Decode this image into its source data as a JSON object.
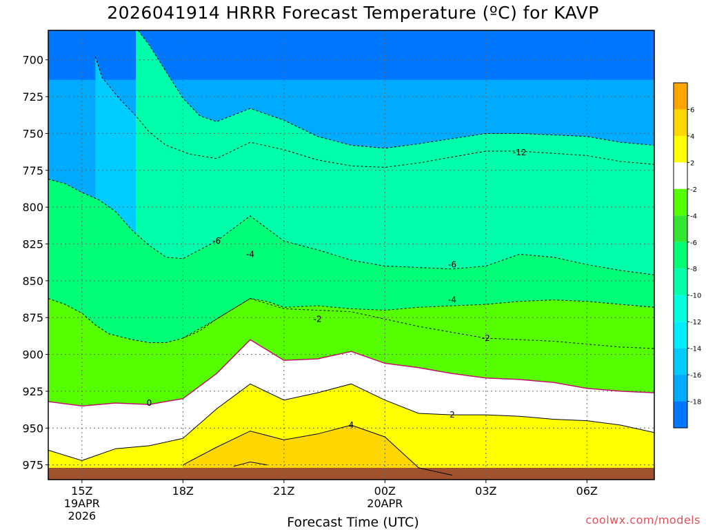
{
  "title": "2026041914 HRRR Forecast Temperature (ºC) for KAVP",
  "x_axis_title": "Forecast Time (UTC)",
  "credit": "coolwx.com/models",
  "chart_data": {
    "type": "heatmap",
    "title": "2026041914 HRRR Forecast Temperature (ºC) for KAVP",
    "xlabel": "Forecast Time (UTC)",
    "ylabel": "",
    "x_tick_labels": [
      "15Z",
      "18Z",
      "21Z",
      "00Z",
      "03Z",
      "06Z"
    ],
    "x_subtick_labels": [
      {
        "at": "15Z",
        "lines": [
          "19APR",
          "2026"
        ]
      },
      {
        "at": "00Z",
        "lines": [
          "20APR"
        ]
      }
    ],
    "x_range_hours": [
      14,
      32
    ],
    "y_tick_labels": [
      "700",
      "725",
      "750",
      "775",
      "800",
      "825",
      "850",
      "875",
      "900",
      "925",
      "950",
      "975"
    ],
    "y_range_hpa": [
      680,
      985
    ],
    "y_reversed": true,
    "grid": true,
    "colorbar": {
      "levels": [
        8,
        6,
        4,
        2,
        -2,
        -4,
        -6,
        -8,
        -10,
        -12,
        -14,
        -16,
        -18,
        -20
      ],
      "tick_labels": [
        "6",
        "4",
        "2",
        "-2",
        "-4",
        "-6",
        "-8",
        "-10",
        "-12",
        "-14",
        "-16",
        "-18"
      ],
      "colors": [
        "#ffa500",
        "#ffd700",
        "#ffff00",
        "#ffffff",
        "#55ff00",
        "#33e633",
        "#00ff77",
        "#00ffaa",
        "#00ffdd",
        "#00eeff",
        "#00ccff",
        "#00aaff",
        "#0077ff"
      ]
    },
    "contours": [
      {
        "label": "-12",
        "color": "#000000",
        "dash": true,
        "points": [
          [
            15.4,
            698
          ],
          [
            15.6,
            712
          ],
          [
            16.1,
            726
          ],
          [
            16.6,
            738
          ],
          [
            17.0,
            749
          ],
          [
            17.5,
            758
          ],
          [
            18.2,
            764
          ],
          [
            19.0,
            767
          ],
          [
            20.0,
            756
          ],
          [
            21.0,
            761
          ],
          [
            22.0,
            768
          ],
          [
            23.0,
            772
          ],
          [
            24.0,
            773
          ],
          [
            25.0,
            770
          ],
          [
            27.0,
            762
          ],
          [
            28.0,
            762
          ],
          [
            30.0,
            765
          ],
          [
            31.0,
            769
          ],
          [
            32.0,
            771
          ]
        ]
      },
      {
        "label": "-10",
        "color": "#000000",
        "dash": true,
        "points": [
          [
            16.6,
            678
          ],
          [
            17.0,
            690
          ],
          [
            17.5,
            708
          ],
          [
            18.0,
            726
          ],
          [
            18.5,
            738
          ],
          [
            19.0,
            742
          ],
          [
            20.0,
            733
          ],
          [
            21.0,
            741
          ],
          [
            22.0,
            752
          ],
          [
            23.0,
            758
          ],
          [
            24.0,
            760
          ],
          [
            25.0,
            757
          ],
          [
            27.0,
            750
          ],
          [
            28.0,
            750
          ],
          [
            30.0,
            752
          ],
          [
            31.0,
            756
          ],
          [
            32.0,
            758
          ]
        ]
      },
      {
        "label": "-6",
        "color": "#000000",
        "dash": true,
        "points": [
          [
            14.0,
            781
          ],
          [
            14.5,
            784
          ],
          [
            15.0,
            790
          ],
          [
            15.5,
            795
          ],
          [
            16.0,
            803
          ],
          [
            16.5,
            816
          ],
          [
            17.0,
            826
          ],
          [
            17.5,
            834
          ],
          [
            18.0,
            835
          ],
          [
            19.0,
            823
          ],
          [
            20.0,
            806
          ],
          [
            21.0,
            823
          ],
          [
            22.0,
            829
          ],
          [
            23.0,
            836
          ],
          [
            24.0,
            840
          ],
          [
            25.0,
            841
          ],
          [
            26.0,
            842
          ],
          [
            27.0,
            840
          ],
          [
            28.0,
            832
          ],
          [
            29.0,
            834
          ],
          [
            30.0,
            839
          ],
          [
            31.0,
            843
          ],
          [
            32.0,
            846
          ]
        ]
      },
      {
        "label": "-4",
        "color": "#000000",
        "dash": true,
        "points": [
          [
            14.0,
            862
          ],
          [
            14.5,
            866
          ],
          [
            15.0,
            872
          ],
          [
            15.4,
            880
          ],
          [
            15.8,
            886
          ],
          [
            16.5,
            890
          ],
          [
            17.0,
            892
          ],
          [
            17.5,
            892
          ],
          [
            18.0,
            889
          ],
          [
            18.5,
            884
          ],
          [
            19.0,
            876
          ],
          [
            20.0,
            862
          ],
          [
            20.5,
            864
          ],
          [
            21.0,
            868
          ],
          [
            22.0,
            867
          ],
          [
            23.0,
            869
          ],
          [
            24.0,
            870
          ],
          [
            25.0,
            868
          ],
          [
            26.0,
            867
          ],
          [
            27.0,
            866
          ],
          [
            28.0,
            864
          ],
          [
            29.0,
            863
          ],
          [
            30.0,
            864
          ],
          [
            31.0,
            866
          ],
          [
            32.0,
            868
          ]
        ]
      },
      {
        "label": "-2",
        "color": "#000000",
        "dash": true,
        "points": [
          [
            18.0,
            889
          ],
          [
            19.0,
            876
          ],
          [
            20.0,
            862
          ],
          [
            21.0,
            869
          ],
          [
            22.0,
            870
          ],
          [
            23.0,
            871
          ],
          [
            24.0,
            876
          ],
          [
            25.0,
            881
          ],
          [
            26.0,
            885
          ],
          [
            27.0,
            889
          ],
          [
            28.0,
            890
          ],
          [
            29.0,
            891
          ],
          [
            30.0,
            893
          ],
          [
            31.0,
            895
          ],
          [
            32.0,
            896
          ]
        ]
      },
      {
        "label": "0",
        "color": "#c0106a",
        "dash": false,
        "points": [
          [
            14.0,
            932
          ],
          [
            15.0,
            935
          ],
          [
            16.0,
            933
          ],
          [
            17.0,
            934
          ],
          [
            18.0,
            930
          ],
          [
            19.0,
            913
          ],
          [
            20.0,
            890
          ],
          [
            21.0,
            904
          ],
          [
            22.0,
            903
          ],
          [
            23.0,
            898
          ],
          [
            24.0,
            906
          ],
          [
            25.0,
            909
          ],
          [
            26.0,
            913
          ],
          [
            27.0,
            916
          ],
          [
            28.0,
            917
          ],
          [
            29.0,
            919
          ],
          [
            30.0,
            923
          ],
          [
            31.0,
            925
          ],
          [
            32.0,
            926
          ]
        ]
      },
      {
        "label": "2",
        "color": "#000000",
        "dash": false,
        "points": [
          [
            14.0,
            965
          ],
          [
            15.0,
            972
          ],
          [
            16.0,
            964
          ],
          [
            17.0,
            962
          ],
          [
            18.0,
            957
          ],
          [
            19.0,
            937
          ],
          [
            20.0,
            920
          ],
          [
            21.0,
            931
          ],
          [
            22.0,
            926
          ],
          [
            23.0,
            920
          ],
          [
            24.0,
            931
          ],
          [
            25.0,
            940
          ],
          [
            26.0,
            941
          ],
          [
            27.0,
            941
          ],
          [
            28.0,
            942
          ],
          [
            29.0,
            944
          ],
          [
            30.0,
            945
          ],
          [
            31.0,
            948
          ],
          [
            32.0,
            953
          ]
        ]
      },
      {
        "label": "4",
        "color": "#000000",
        "dash": false,
        "points": [
          [
            18.0,
            975
          ],
          [
            19.0,
            963
          ],
          [
            20.0,
            952
          ],
          [
            21.0,
            958
          ],
          [
            22.0,
            954
          ],
          [
            23.0,
            948
          ],
          [
            24.0,
            956
          ],
          [
            25.0,
            977
          ],
          [
            26.0,
            982
          ]
        ]
      },
      {
        "label": "6",
        "color": "#000000",
        "dash": false,
        "points": [
          [
            19.5,
            976
          ],
          [
            20.0,
            973
          ],
          [
            20.5,
            975
          ]
        ]
      }
    ],
    "contour_labels": [
      {
        "text": "-12",
        "x": 28.0,
        "p": 763
      },
      {
        "text": "-6",
        "x": 19.0,
        "p": 823
      },
      {
        "text": "-4",
        "x": 20.0,
        "p": 832
      },
      {
        "text": "-6",
        "x": 26.0,
        "p": 839
      },
      {
        "text": "-4",
        "x": 26.0,
        "p": 863
      },
      {
        "text": "-2",
        "x": 22.0,
        "p": 876
      },
      {
        "text": "-2",
        "x": 27.0,
        "p": 889
      },
      {
        "text": "0",
        "x": 17.0,
        "p": 933
      },
      {
        "text": "2",
        "x": 26.0,
        "p": 941
      },
      {
        "text": "4",
        "x": 23.0,
        "p": 948
      }
    ],
    "terrain_color": "#a0522d"
  }
}
